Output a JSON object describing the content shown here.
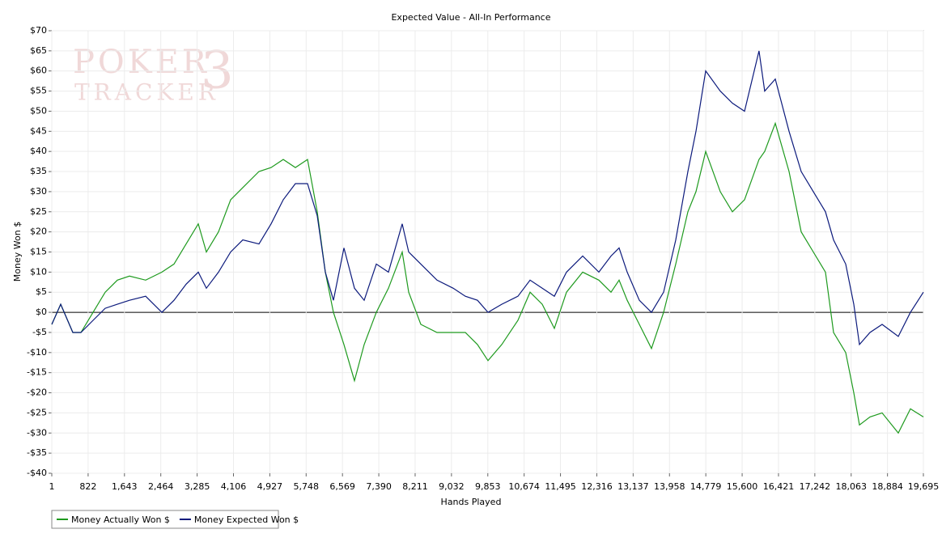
{
  "chart_data": {
    "type": "line",
    "title": "Expected Value - All-In Performance",
    "xlabel": "Hands Played",
    "ylabel": "Money Won $",
    "watermark": [
      "POKER",
      "TRACKER",
      "3"
    ],
    "x": [
      1,
      202,
      476,
      659,
      934,
      1208,
      1482,
      1756,
      2122,
      2488,
      2762,
      3036,
      3311,
      3494,
      3768,
      4042,
      4317,
      4683,
      4956,
      5231,
      5505,
      5779,
      5998,
      6182,
      6364,
      6602,
      6840,
      7059,
      7333,
      7608,
      7919,
      8065,
      8339,
      8705,
      9071,
      9345,
      9619,
      9857,
      10168,
      10534,
      10808,
      11082,
      11357,
      11631,
      11997,
      12362,
      12637,
      12820,
      13002,
      13277,
      13551,
      13825,
      14100,
      14374,
      14557,
      14776,
      15105,
      15379,
      15653,
      15982,
      16110,
      16348,
      16659,
      16933,
      17208,
      17482,
      17665,
      17939,
      18122,
      18250,
      18488,
      18762,
      19128,
      19403,
      19695
    ],
    "series": [
      {
        "name": "Money Actually Won $",
        "color": "#1e9a1e",
        "values": [
          -3,
          2,
          -5,
          -5,
          0,
          5,
          8,
          9,
          8,
          10,
          12,
          17,
          22,
          15,
          20,
          28,
          31,
          35,
          36,
          38,
          36,
          38,
          25,
          10,
          0,
          -8,
          -17,
          -8,
          0,
          6,
          15,
          5,
          -3,
          -5,
          -5,
          -5,
          -8,
          -12,
          -8,
          -2,
          5,
          2,
          -4,
          5,
          10,
          8,
          5,
          8,
          3,
          -3,
          -9,
          0,
          12,
          25,
          30,
          40,
          30,
          25,
          28,
          38,
          40,
          47,
          35,
          20,
          15,
          10,
          -5,
          -10,
          -20,
          -28,
          -26,
          -25,
          -30,
          -24,
          -26
        ]
      },
      {
        "name": "Money Expected Won $",
        "color": "#0c1a7c",
        "values": [
          -3,
          2,
          -5,
          -5,
          -2,
          1,
          2,
          3,
          4,
          0,
          3,
          7,
          10,
          6,
          10,
          15,
          18,
          17,
          22,
          28,
          32,
          32,
          24,
          10,
          3,
          16,
          6,
          3,
          12,
          10,
          22,
          15,
          12,
          8,
          6,
          4,
          3,
          0,
          2,
          4,
          8,
          6,
          4,
          10,
          14,
          10,
          14,
          16,
          10,
          3,
          0,
          5,
          18,
          35,
          45,
          60,
          55,
          52,
          50,
          65,
          55,
          58,
          45,
          35,
          30,
          25,
          18,
          12,
          2,
          -8,
          -5,
          -3,
          -6,
          0,
          5
        ]
      }
    ],
    "xlim": [
      1,
      19695
    ],
    "xticks": [
      1,
      822,
      {
        "value": 1643,
        "label": "1,643"
      },
      {
        "value": 2464,
        "label": "2,464"
      },
      {
        "value": 3285,
        "label": "3,285"
      },
      {
        "value": 4106,
        "label": "4,106"
      },
      {
        "value": 4927,
        "label": "4,927"
      },
      {
        "value": 5748,
        "label": "5,748"
      },
      {
        "value": 6569,
        "label": "6,569"
      },
      {
        "value": 7390,
        "label": "7,390"
      },
      {
        "value": 8211,
        "label": "8,211"
      },
      {
        "value": 9032,
        "label": "9,032"
      },
      {
        "value": 9853,
        "label": "9,853"
      },
      {
        "value": 10674,
        "label": "10,674"
      },
      {
        "value": 11495,
        "label": "11,495"
      },
      {
        "value": 12316,
        "label": "12,316"
      },
      {
        "value": 13137,
        "label": "13,137"
      },
      {
        "value": 13958,
        "label": "13,958"
      },
      {
        "value": 14779,
        "label": "14,779"
      },
      {
        "value": 15600,
        "label": "15,600"
      },
      {
        "value": 16421,
        "label": "16,421"
      },
      {
        "value": 17242,
        "label": "17,242"
      },
      {
        "value": 18063,
        "label": "18,063"
      },
      {
        "value": 18884,
        "label": "18,884"
      },
      {
        "value": 19695,
        "label": "19,695"
      }
    ],
    "ylim": [
      -40,
      70
    ],
    "yticks": [
      {
        "value": -40,
        "label": "-$40"
      },
      {
        "value": -35,
        "label": "-$35"
      },
      {
        "value": -30,
        "label": "-$30"
      },
      {
        "value": -25,
        "label": "-$25"
      },
      {
        "value": -20,
        "label": "-$20"
      },
      {
        "value": -15,
        "label": "-$15"
      },
      {
        "value": -10,
        "label": "-$10"
      },
      {
        "value": -5,
        "label": "-$5"
      },
      {
        "value": 0,
        "label": "$0"
      },
      {
        "value": 5,
        "label": "$5"
      },
      {
        "value": 10,
        "label": "$10"
      },
      {
        "value": 15,
        "label": "$15"
      },
      {
        "value": 20,
        "label": "$20"
      },
      {
        "value": 25,
        "label": "$25"
      },
      {
        "value": 30,
        "label": "$30"
      },
      {
        "value": 35,
        "label": "$35"
      },
      {
        "value": 40,
        "label": "$40"
      },
      {
        "value": 45,
        "label": "$45"
      },
      {
        "value": 50,
        "label": "$50"
      },
      {
        "value": 55,
        "label": "$55"
      },
      {
        "value": 60,
        "label": "$60"
      },
      {
        "value": 65,
        "label": "$65"
      },
      {
        "value": 70,
        "label": "$70"
      }
    ],
    "grid": true,
    "legend": "bottom-left"
  }
}
